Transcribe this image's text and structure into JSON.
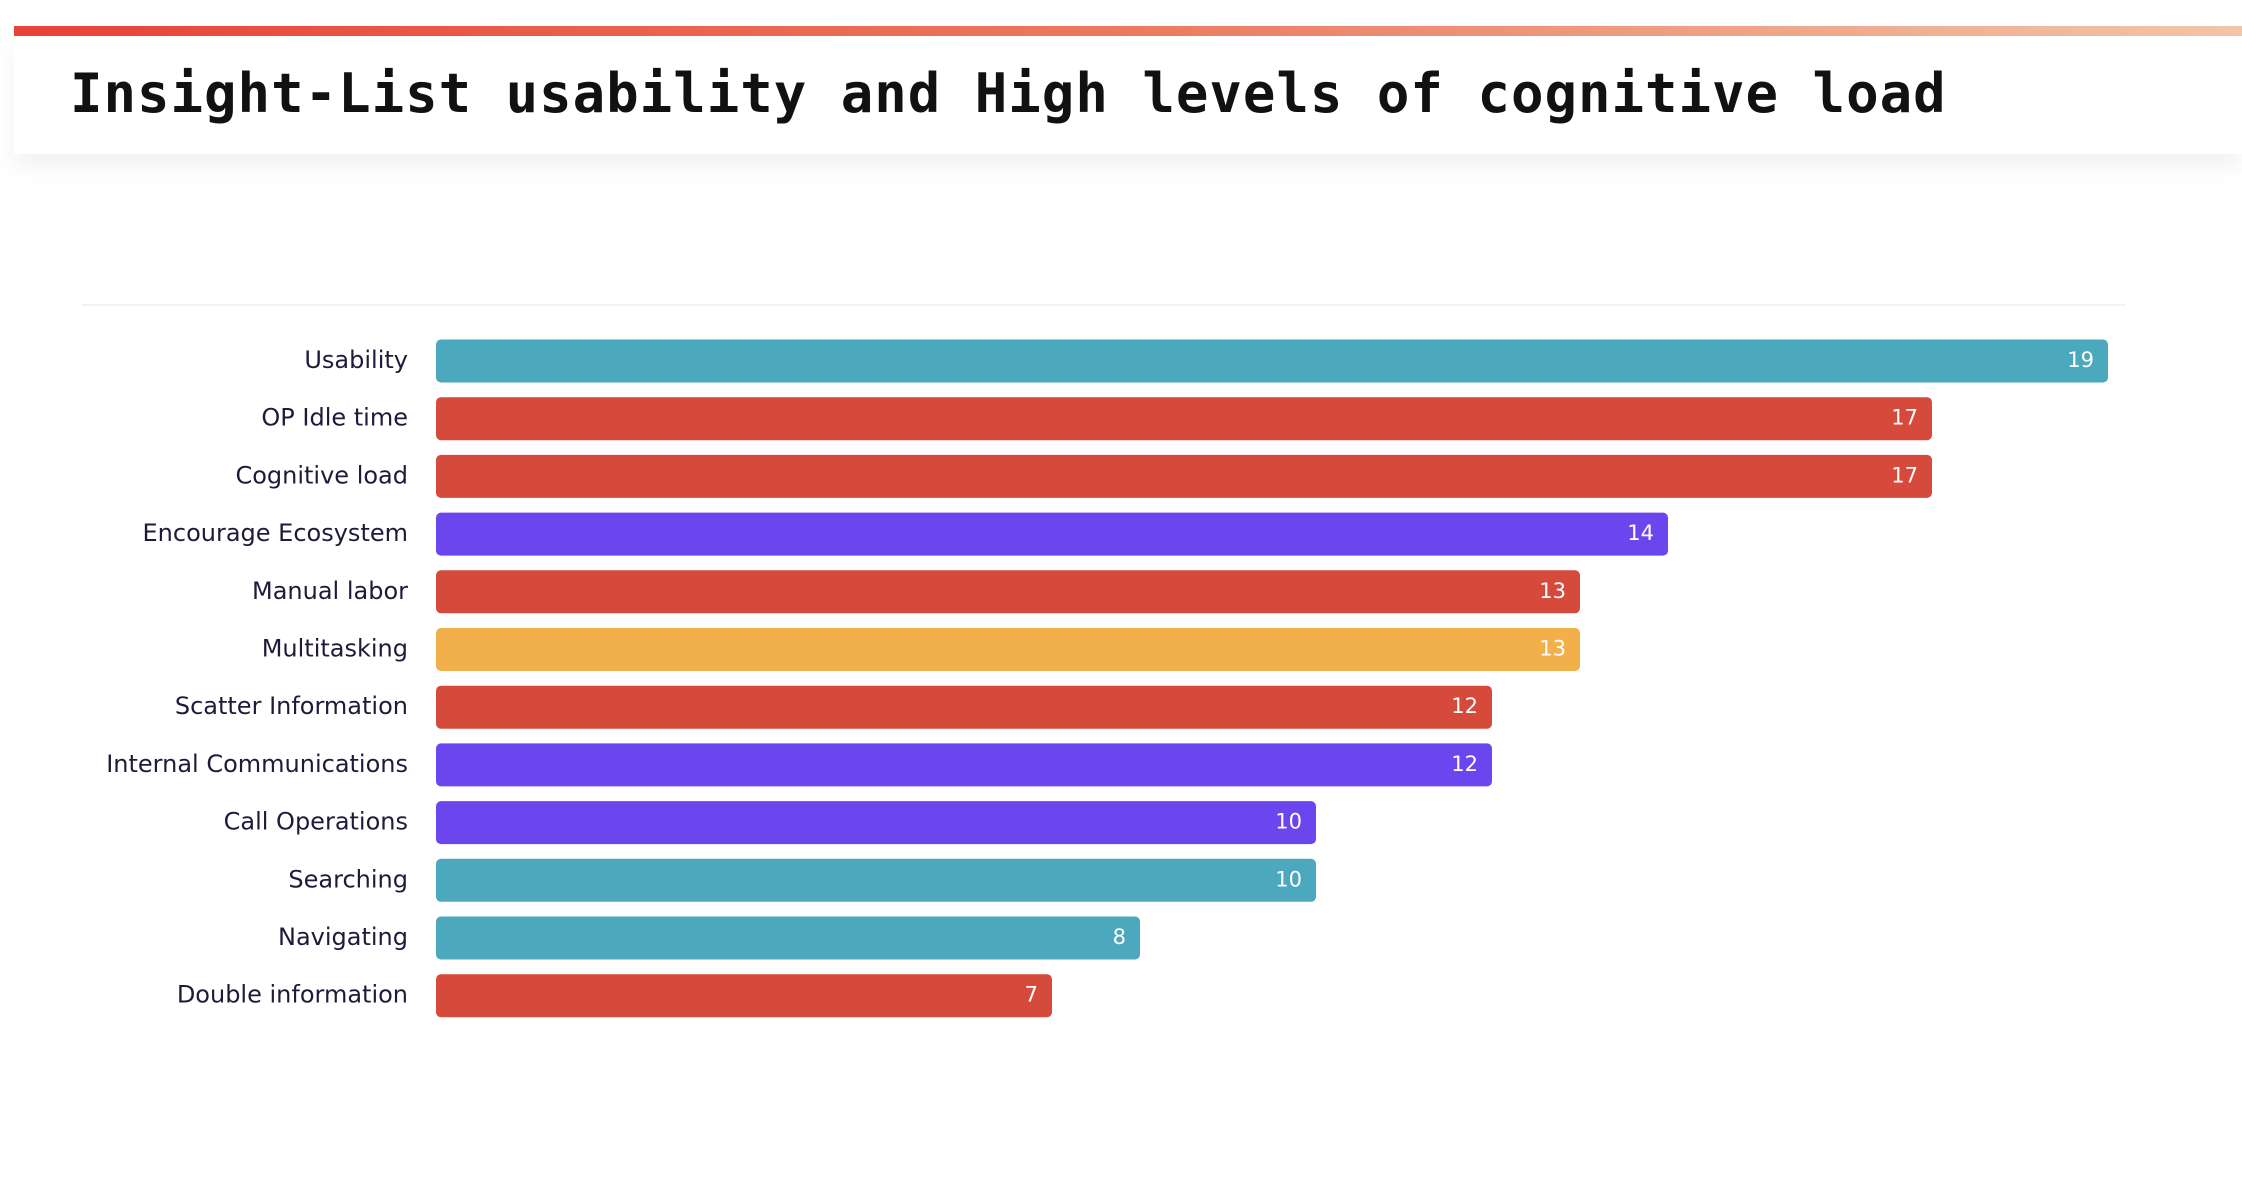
{
  "title": "Insight-List usability and High levels of cognitive load",
  "chart_data": {
    "type": "bar",
    "orientation": "horizontal",
    "categories": [
      "Usability",
      "OP Idle time",
      "Cognitive load",
      "Encourage Ecosystem",
      "Manual labor",
      "Multitasking",
      "Scatter Information",
      "Internal Communications",
      "Call Operations",
      "Searching",
      "Navigating",
      "Double information"
    ],
    "values": [
      19,
      17,
      17,
      14,
      13,
      13,
      12,
      12,
      10,
      10,
      8,
      7
    ],
    "colors": [
      "#4ba8bd",
      "#d64a3b",
      "#d64a3b",
      "#6b46ee",
      "#d64a3b",
      "#f2b04a",
      "#d64a3b",
      "#6b46ee",
      "#6b46ee",
      "#4ba8bd",
      "#4ba8bd",
      "#d64a3b"
    ]
  }
}
